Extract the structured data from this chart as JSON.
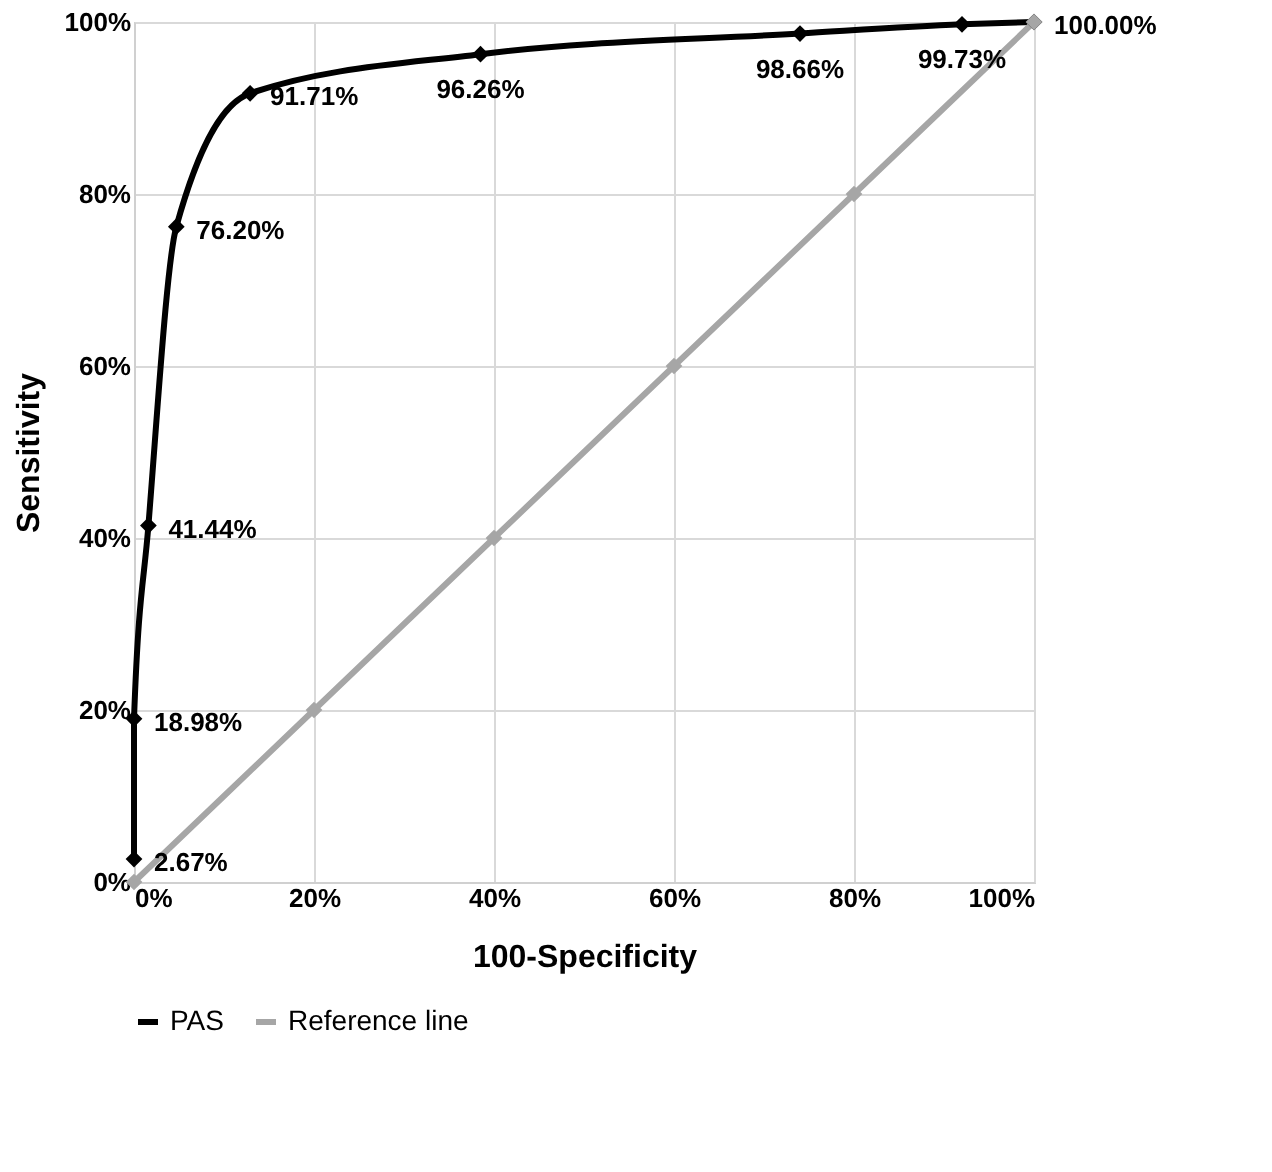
{
  "chart_data": {
    "type": "line",
    "xlabel": "100-Specificity",
    "ylabel": "Sensitivity",
    "xlim": [
      0,
      100
    ],
    "ylim": [
      0,
      100
    ],
    "xticks": [
      {
        "value": 0,
        "label": "0%"
      },
      {
        "value": 20,
        "label": "20%"
      },
      {
        "value": 40,
        "label": "40%"
      },
      {
        "value": 60,
        "label": "60%"
      },
      {
        "value": 80,
        "label": "80%"
      },
      {
        "value": 100,
        "label": "100%"
      }
    ],
    "yticks": [
      {
        "value": 0,
        "label": "0%"
      },
      {
        "value": 20,
        "label": "20%"
      },
      {
        "value": 40,
        "label": "40%"
      },
      {
        "value": 60,
        "label": "60%"
      },
      {
        "value": 80,
        "label": "80%"
      },
      {
        "value": 100,
        "label": "100%"
      }
    ],
    "grid": true,
    "legend": "bottom",
    "marker": "diamond",
    "line_style": "solid",
    "series": [
      {
        "name": "PAS",
        "color": "#000000",
        "x": [
          0,
          0,
          1.6,
          4.7,
          12.9,
          38.5,
          74,
          92,
          100
        ],
        "values": [
          2.67,
          18.98,
          41.44,
          76.2,
          91.71,
          96.26,
          98.66,
          99.73,
          100
        ],
        "value_labels": [
          "2.67%",
          "18.98%",
          "41.44%",
          "76.20%",
          "91.71%",
          "96.26%",
          "98.66%",
          "99.73%",
          "100.00%"
        ]
      },
      {
        "name": "Reference line",
        "color": "#a6a6a6",
        "x": [
          0,
          20,
          40,
          60,
          80,
          100
        ],
        "values": [
          0,
          20,
          40,
          60,
          80,
          100
        ]
      }
    ]
  }
}
